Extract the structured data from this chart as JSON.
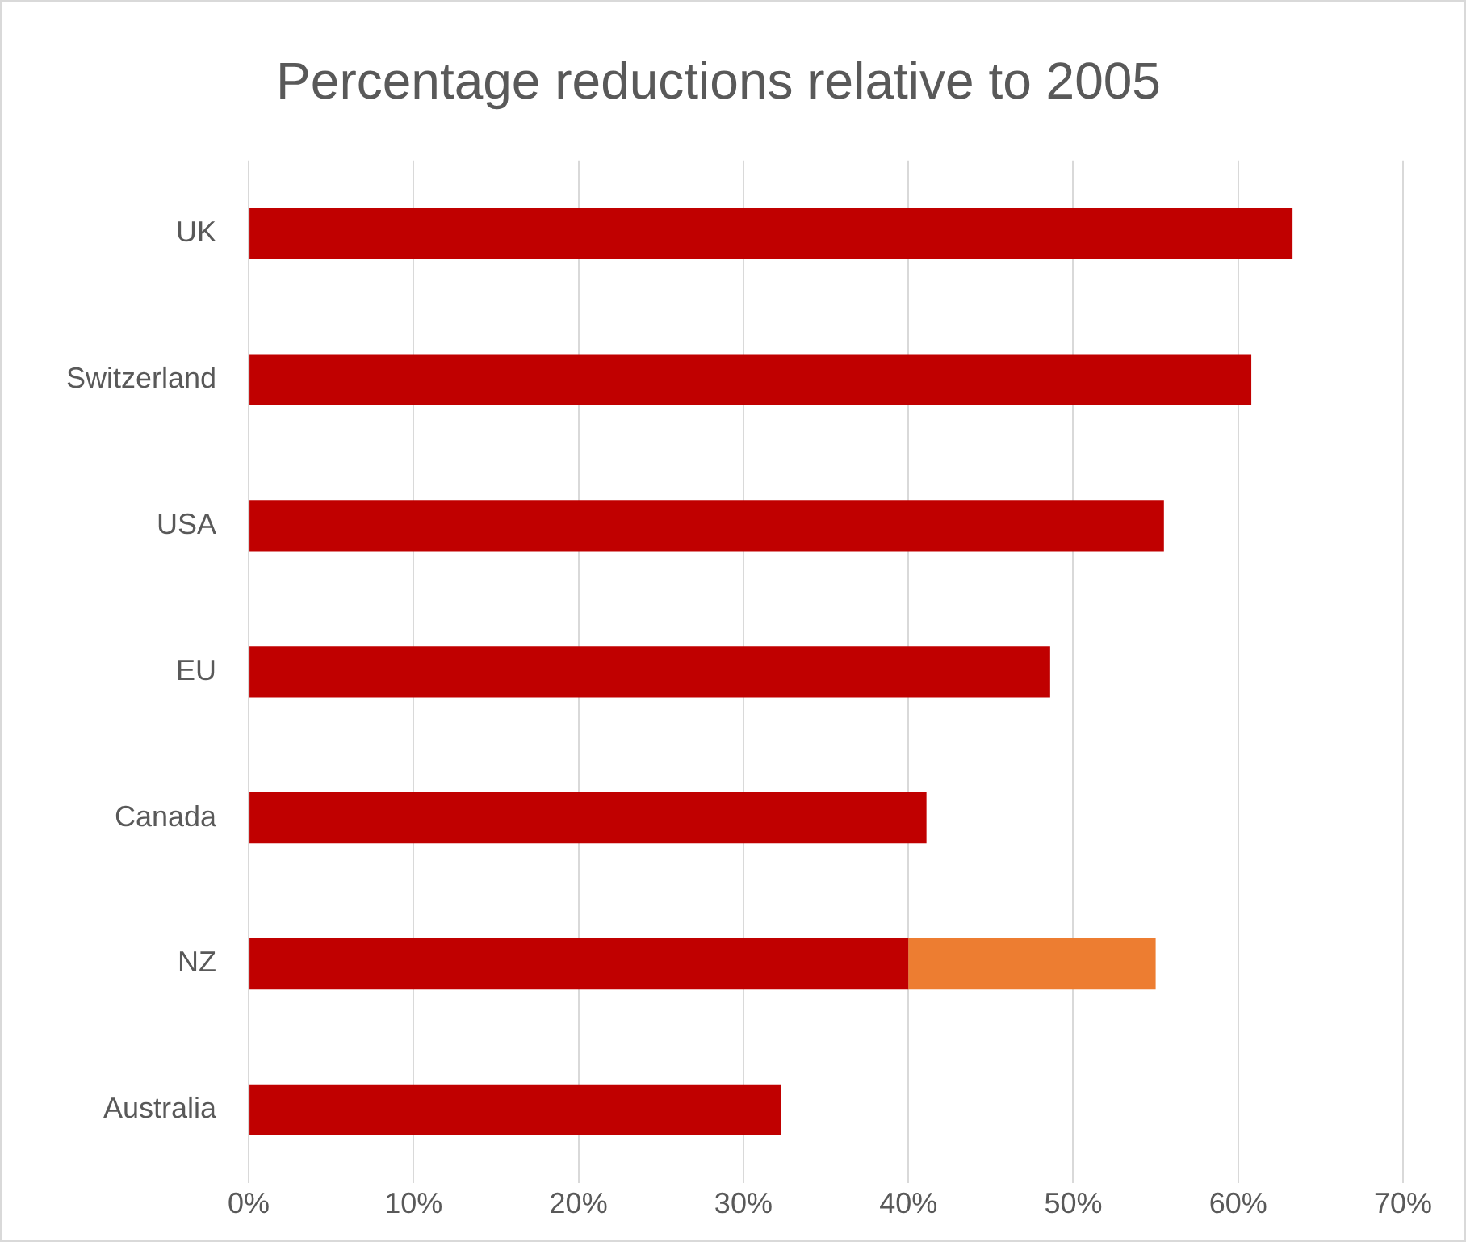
{
  "chart_data": {
    "type": "bar",
    "title": "Percentage reductions relative to 2005",
    "orientation": "horizontal",
    "stacked": true,
    "categories": [
      "UK",
      "Switzerland",
      "USA",
      "EU",
      "Canada",
      "NZ",
      "Australia"
    ],
    "series": [
      {
        "color": "#c00000",
        "values": [
          63.3,
          60.8,
          55.5,
          48.6,
          41.1,
          40,
          32.3
        ]
      },
      {
        "color": "#ed7d31",
        "values": [
          null,
          null,
          null,
          null,
          null,
          15,
          null
        ]
      }
    ],
    "xlim": [
      0,
      70
    ],
    "xticks": [
      {
        "value": 0,
        "label": "0%"
      },
      {
        "value": 10,
        "label": "10%"
      },
      {
        "value": 20,
        "label": "20%"
      },
      {
        "value": 30,
        "label": "30%"
      },
      {
        "value": 40,
        "label": "40%"
      },
      {
        "value": 50,
        "label": "50%"
      },
      {
        "value": 60,
        "label": "60%"
      },
      {
        "value": 70,
        "label": "70%"
      }
    ],
    "grid": "x",
    "legend": false
  }
}
